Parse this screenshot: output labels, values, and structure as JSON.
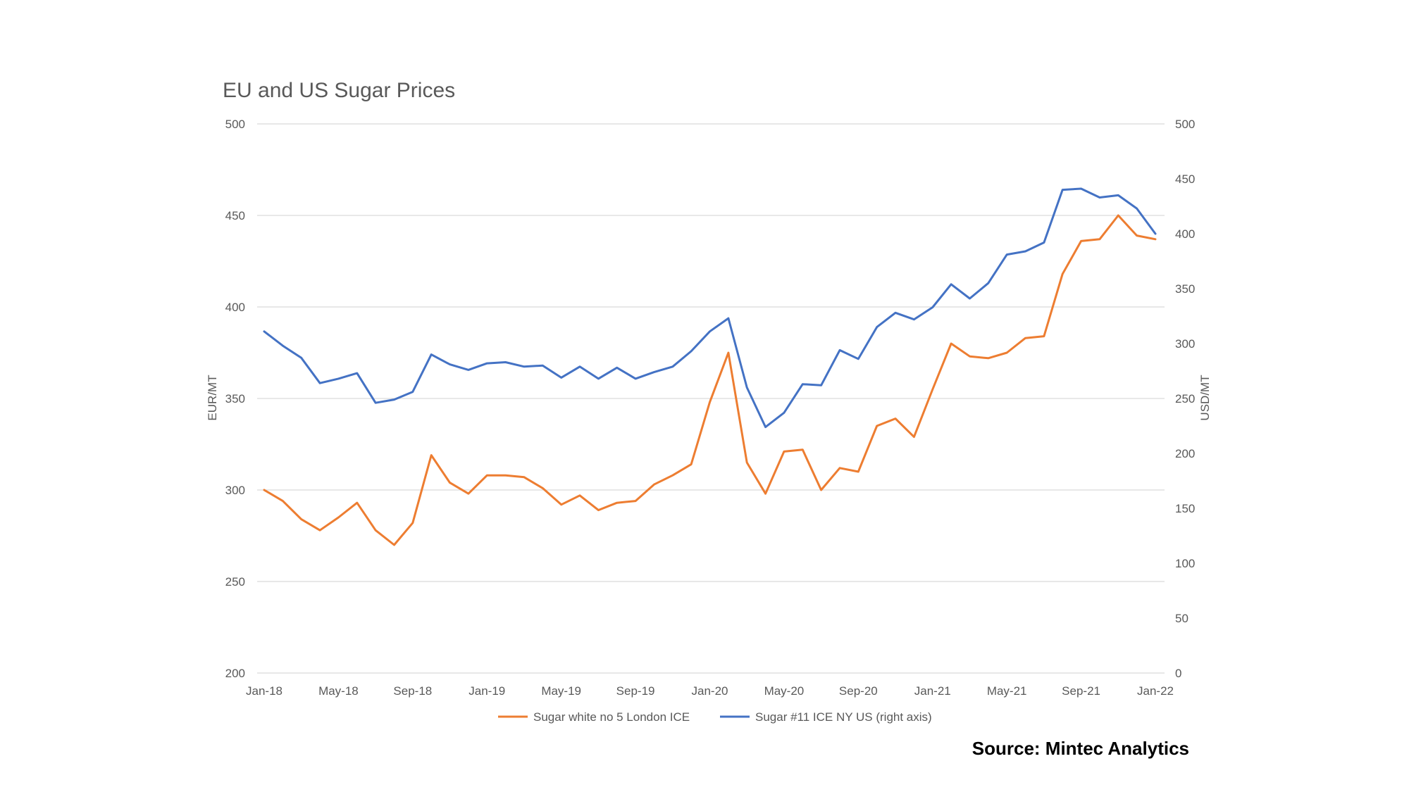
{
  "source": "Source: Mintec Analytics",
  "chart_data": {
    "type": "line",
    "title": "EU and US Sugar Prices",
    "ylabel_left": "EUR/MT",
    "ylabel_right": "USD/MT",
    "ylim_left": [
      200,
      500
    ],
    "ylim_right": [
      0,
      500
    ],
    "yticks_left": [
      "500",
      "450",
      "400",
      "350",
      "300",
      "250",
      "200"
    ],
    "yticks_right": [
      "500",
      "450",
      "400",
      "350",
      "300",
      "250",
      "200",
      "150",
      "100",
      "50",
      "0"
    ],
    "xtick_labels": [
      "Jan-18",
      "May-18",
      "Sep-18",
      "Jan-19",
      "May-19",
      "Sep-19",
      "Jan-20",
      "May-20",
      "Sep-20",
      "Jan-21",
      "May-21",
      "Sep-21",
      "Jan-22"
    ],
    "grid": true,
    "legend_position": "bottom",
    "x": [
      "Jan-18",
      "Feb-18",
      "Mar-18",
      "Apr-18",
      "May-18",
      "Jun-18",
      "Jul-18",
      "Aug-18",
      "Sep-18",
      "Oct-18",
      "Nov-18",
      "Dec-18",
      "Jan-19",
      "Feb-19",
      "Mar-19",
      "Apr-19",
      "May-19",
      "Jun-19",
      "Jul-19",
      "Aug-19",
      "Sep-19",
      "Oct-19",
      "Nov-19",
      "Dec-19",
      "Jan-20",
      "Feb-20",
      "Mar-20",
      "Apr-20",
      "May-20",
      "Jun-20",
      "Jul-20",
      "Aug-20",
      "Sep-20",
      "Oct-20",
      "Nov-20",
      "Dec-20",
      "Jan-21",
      "Feb-21",
      "Mar-21",
      "Apr-21",
      "May-21",
      "Jun-21",
      "Jul-21",
      "Aug-21",
      "Sep-21",
      "Oct-21",
      "Nov-21",
      "Dec-21",
      "Jan-22"
    ],
    "series": [
      {
        "name": "Sugar white no 5 London ICE",
        "axis": "left",
        "color": "#ED7D31",
        "values": [
          300,
          294,
          284,
          278,
          285,
          293,
          278,
          270,
          282,
          319,
          304,
          298,
          308,
          308,
          307,
          301,
          292,
          297,
          289,
          293,
          294,
          303,
          308,
          314,
          348,
          375,
          315,
          298,
          321,
          322,
          300,
          312,
          310,
          335,
          339,
          329,
          355,
          380,
          373,
          372,
          375,
          383,
          384,
          418,
          436,
          437,
          450,
          439,
          437
        ]
      },
      {
        "name": "Sugar #11 ICE NY US (right axis)",
        "axis": "right",
        "color": "#4472C4",
        "values": [
          311,
          298,
          287,
          264,
          268,
          273,
          246,
          249,
          256,
          290,
          281,
          276,
          282,
          283,
          279,
          280,
          269,
          279,
          268,
          278,
          268,
          274,
          279,
          293,
          311,
          323,
          260,
          224,
          237,
          263,
          262,
          294,
          286,
          315,
          328,
          322,
          333,
          354,
          341,
          355,
          381,
          384,
          392,
          440,
          441,
          433,
          435,
          423,
          400
        ]
      }
    ]
  }
}
